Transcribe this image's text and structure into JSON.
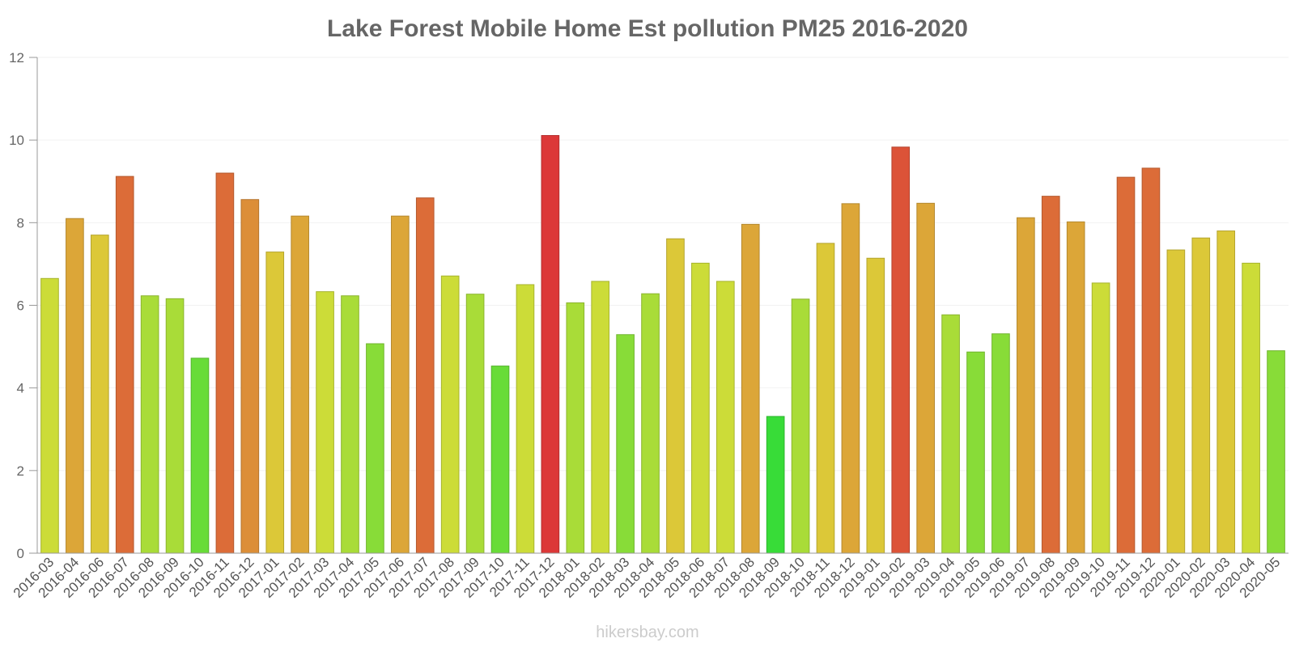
{
  "chart_data": {
    "type": "bar",
    "title": "Lake Forest Mobile Home Est pollution PM25 2016-2020",
    "xlabel": "",
    "ylabel": "",
    "ylim": [
      0,
      12
    ],
    "yticks": [
      0,
      2,
      4,
      6,
      8,
      10,
      12
    ],
    "grid": true,
    "categories": [
      "2016-03",
      "2016-04",
      "2016-06",
      "2016-07",
      "2016-08",
      "2016-09",
      "2016-10",
      "2016-11",
      "2016-12",
      "2017-01",
      "2017-02",
      "2017-03",
      "2017-04",
      "2017-05",
      "2017-06",
      "2017-07",
      "2017-08",
      "2017-09",
      "2017-10",
      "2017-11",
      "2017-12",
      "2018-01",
      "2018-02",
      "2018-03",
      "2018-04",
      "2018-05",
      "2018-06",
      "2018-07",
      "2018-08",
      "2018-09",
      "2018-10",
      "2018-11",
      "2018-12",
      "2019-01",
      "2019-02",
      "2019-03",
      "2019-04",
      "2019-05",
      "2019-06",
      "2019-07",
      "2019-08",
      "2019-09",
      "2019-10",
      "2019-11",
      "2019-12",
      "2020-01",
      "2020-02",
      "2020-03",
      "2020-04",
      "2020-05"
    ],
    "values": [
      6.65,
      8.1,
      7.7,
      9.12,
      6.23,
      6.16,
      4.72,
      9.2,
      8.56,
      7.29,
      8.16,
      6.33,
      6.23,
      5.07,
      8.16,
      8.6,
      6.71,
      6.27,
      4.53,
      6.5,
      10.11,
      6.06,
      6.58,
      5.29,
      6.28,
      7.61,
      7.02,
      6.58,
      7.96,
      3.31,
      6.15,
      7.5,
      8.46,
      7.14,
      9.83,
      8.47,
      5.77,
      4.87,
      5.31,
      8.12,
      8.64,
      8.02,
      6.54,
      9.1,
      9.32,
      7.34,
      7.63,
      7.8,
      7.02,
      4.9
    ],
    "colors": [
      "#ccdc38",
      "#dca638",
      "#dcc838",
      "#dc6c38",
      "#a9dc38",
      "#a9dc38",
      "#68dc38",
      "#dc6c38",
      "#dc8e38",
      "#dcc838",
      "#dca638",
      "#ccdc38",
      "#a9dc38",
      "#88dc38",
      "#dca638",
      "#dc6c38",
      "#ccdc38",
      "#a9dc38",
      "#68dc38",
      "#ccdc38",
      "#dc3838",
      "#a9dc38",
      "#ccdc38",
      "#88dc38",
      "#a9dc38",
      "#dcc838",
      "#ccdc38",
      "#ccdc38",
      "#dca638",
      "#38dc38",
      "#a9dc38",
      "#dcc838",
      "#dca638",
      "#dcc838",
      "#dc5338",
      "#dca638",
      "#a9dc38",
      "#88dc38",
      "#88dc38",
      "#dca638",
      "#dc6c38",
      "#dca638",
      "#ccdc38",
      "#dc6c38",
      "#dc6c38",
      "#dcc838",
      "#dcc838",
      "#dcc838",
      "#ccdc38",
      "#88dc38"
    ],
    "credit": "hikersbay.com"
  }
}
